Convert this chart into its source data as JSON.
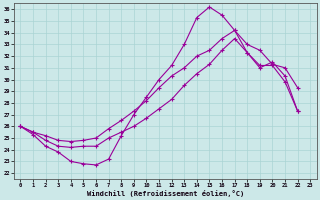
{
  "xlabel": "Windchill (Refroidissement éolien,°C)",
  "bg_color": "#cce8e8",
  "line_color": "#990099",
  "grid_color": "#aad4d4",
  "xlim": [
    -0.5,
    23.5
  ],
  "ylim": [
    21.5,
    36.5
  ],
  "xticks": [
    0,
    1,
    2,
    3,
    4,
    5,
    6,
    7,
    8,
    9,
    10,
    11,
    12,
    13,
    14,
    15,
    16,
    17,
    18,
    19,
    20,
    21,
    22,
    23
  ],
  "yticks": [
    22,
    23,
    24,
    25,
    26,
    27,
    28,
    29,
    30,
    31,
    32,
    33,
    34,
    35,
    36
  ],
  "line1_x": [
    0,
    1,
    2,
    3,
    4,
    5,
    6,
    7,
    8,
    9,
    10,
    11,
    12,
    13,
    14,
    15,
    16,
    17,
    18,
    19,
    20,
    21,
    22
  ],
  "line1_y": [
    26.0,
    25.3,
    24.3,
    23.8,
    23.0,
    22.8,
    22.7,
    23.2,
    25.2,
    27.0,
    28.5,
    30.0,
    31.2,
    33.0,
    35.3,
    36.2,
    35.5,
    34.2,
    33.0,
    32.5,
    31.3,
    31.0,
    29.3
  ],
  "line2_x": [
    0,
    1,
    2,
    3,
    4,
    5,
    6,
    7,
    8,
    9,
    10,
    11,
    12,
    13,
    14,
    15,
    16,
    17,
    18,
    19,
    20,
    21,
    22
  ],
  "line2_y": [
    26.0,
    25.5,
    25.2,
    24.8,
    24.7,
    24.8,
    25.0,
    25.8,
    26.5,
    27.3,
    28.2,
    29.3,
    30.3,
    31.0,
    32.0,
    32.5,
    33.5,
    34.2,
    32.3,
    31.0,
    31.5,
    30.3,
    27.3
  ],
  "line3_x": [
    0,
    1,
    2,
    3,
    4,
    5,
    6,
    7,
    8,
    9,
    10,
    11,
    12,
    13,
    14,
    15,
    16,
    17,
    18,
    19,
    20,
    21,
    22
  ],
  "line3_y": [
    26.0,
    25.5,
    24.8,
    24.3,
    24.2,
    24.3,
    24.3,
    25.0,
    25.5,
    26.0,
    26.7,
    27.5,
    28.3,
    29.5,
    30.5,
    31.3,
    32.5,
    33.5,
    32.3,
    31.2,
    31.2,
    29.8,
    27.3
  ]
}
